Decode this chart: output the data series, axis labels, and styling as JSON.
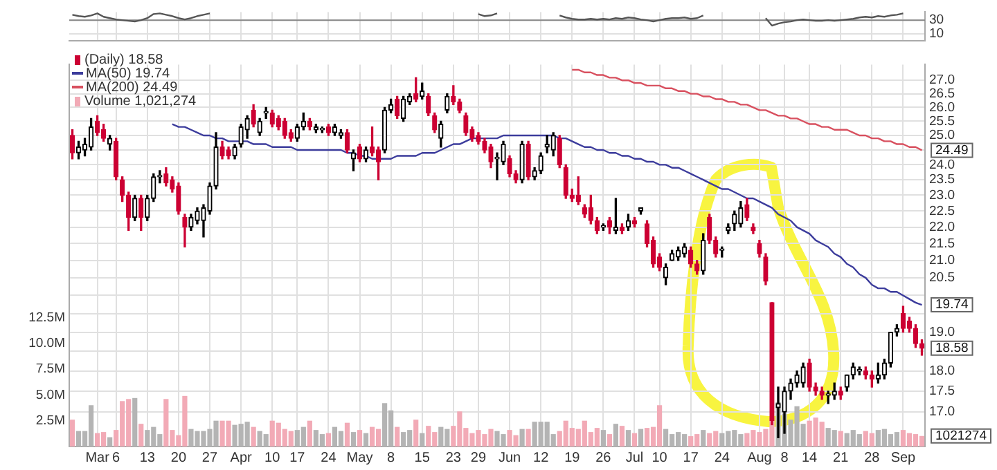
{
  "chart_data": [
    {
      "type": "line",
      "categories": [
        null,
        null,
        null,
        null,
        null,
        null,
        null,
        null,
        null,
        null,
        null,
        null,
        null,
        null,
        null,
        null,
        null,
        null,
        null,
        null,
        null,
        null,
        null,
        null,
        null,
        null,
        null,
        null,
        null,
        null,
        null,
        null,
        null,
        null,
        null,
        null,
        null,
        null,
        null,
        null,
        null,
        null,
        null,
        null,
        null,
        null,
        null,
        null,
        null,
        null,
        null,
        null,
        null,
        null,
        null,
        null,
        null,
        null,
        null,
        null,
        null,
        null,
        null,
        null,
        null,
        null,
        null,
        null,
        null,
        null,
        null,
        null,
        null,
        null,
        null,
        null,
        null,
        null,
        null,
        null,
        null,
        null,
        null,
        null,
        null,
        null,
        null,
        null,
        null,
        null,
        null,
        null,
        null,
        null,
        null,
        null,
        null,
        null,
        null,
        null,
        null,
        null,
        null,
        null,
        null,
        null,
        null,
        null,
        null,
        null,
        null,
        null,
        null,
        null,
        null,
        null,
        null,
        null,
        null,
        null,
        null,
        null,
        null,
        null,
        null,
        null,
        null,
        null,
        null,
        null,
        null,
        null,
        null,
        null,
        null,
        null,
        null
      ],
      "series": [
        {
          "color": "#555555",
          "values": [
            38,
            36,
            35,
            37,
            40,
            35,
            33,
            31,
            30,
            29,
            28,
            30,
            33,
            39,
            40,
            38,
            36,
            33,
            31,
            33,
            36,
            38,
            40,
            null,
            null,
            null,
            null,
            null,
            null,
            null,
            null,
            null,
            null,
            null,
            null,
            null,
            null,
            null,
            null,
            null,
            null,
            null,
            null,
            null,
            null,
            null,
            null,
            null,
            null,
            null,
            null,
            null,
            null,
            null,
            null,
            null,
            null,
            null,
            null,
            null,
            null,
            null,
            null,
            null,
            null,
            39,
            36,
            37,
            40,
            null,
            null,
            null,
            null,
            null,
            null,
            null,
            null,
            null,
            37,
            34,
            32,
            31,
            31,
            32,
            31,
            32,
            31,
            33,
            32,
            34,
            33,
            31,
            30,
            28,
            30,
            32,
            33,
            33,
            34,
            32,
            33,
            37,
            null,
            null,
            null,
            null,
            null,
            null,
            null,
            null,
            null,
            33,
            22,
            25,
            27,
            28,
            30,
            31,
            30,
            29,
            29,
            30,
            29,
            30,
            31,
            32,
            34,
            35,
            34,
            36,
            35,
            37,
            38,
            40,
            null,
            null,
            null
          ]
        }
      ],
      "ylim": [
        0,
        42
      ],
      "yticks": [
        10,
        30
      ],
      "grid": true,
      "marker": "none",
      "tick_labels": "y",
      "ref_lines": [
        {
          "axis": "y",
          "value": 30,
          "color": "#888888"
        }
      ]
    },
    {
      "type": "candlestick",
      "categories": [
        null,
        null,
        null,
        null,
        "Mar",
        null,
        null,
        "6",
        null,
        null,
        null,
        null,
        "13",
        null,
        null,
        null,
        null,
        "20",
        null,
        null,
        null,
        null,
        "27",
        null,
        null,
        null,
        null,
        "Apr",
        null,
        null,
        null,
        null,
        "10",
        null,
        null,
        null,
        "17",
        null,
        null,
        null,
        null,
        "24",
        null,
        null,
        null,
        null,
        "May",
        null,
        null,
        null,
        null,
        "8",
        null,
        null,
        null,
        null,
        "15",
        null,
        null,
        null,
        null,
        "23",
        null,
        null,
        null,
        "29",
        null,
        null,
        null,
        null,
        "Jun",
        null,
        null,
        null,
        null,
        "12",
        null,
        null,
        null,
        null,
        "19",
        null,
        null,
        null,
        null,
        "26",
        null,
        null,
        null,
        null,
        "Jul",
        null,
        null,
        null,
        "10",
        null,
        null,
        null,
        null,
        "17",
        null,
        null,
        null,
        null,
        "24",
        null,
        null,
        null,
        null,
        null,
        "Aug",
        null,
        null,
        null,
        "8",
        null,
        null,
        null,
        "14",
        null,
        null,
        null,
        null,
        "21",
        null,
        null,
        null,
        null,
        "28",
        null,
        null,
        null,
        null,
        "Sep",
        null,
        null,
        null
      ],
      "series": [
        {
          "name": "(Daily) 18.58",
          "ohlc": [
            [
              25.0,
              25.2,
              24.2,
              24.4
            ],
            [
              24.4,
              24.8,
              24.2,
              24.6
            ],
            [
              24.5,
              24.9,
              24.3,
              24.7
            ],
            [
              24.6,
              25.6,
              24.5,
              25.3
            ],
            [
              25.5,
              25.7,
              25.0,
              25.1
            ],
            [
              25.2,
              25.4,
              24.8,
              24.9
            ],
            [
              24.7,
              25.0,
              24.5,
              24.9
            ],
            [
              24.8,
              24.9,
              23.5,
              23.6
            ],
            [
              23.5,
              23.6,
              22.8,
              23.0
            ],
            [
              23.0,
              23.1,
              21.9,
              22.3
            ],
            [
              22.3,
              23.0,
              22.2,
              22.9
            ],
            [
              22.9,
              23.0,
              21.9,
              22.3
            ],
            [
              22.3,
              23.0,
              22.2,
              22.9
            ],
            [
              22.9,
              23.7,
              22.8,
              23.6
            ],
            [
              23.6,
              23.8,
              23.4,
              23.6
            ],
            [
              23.7,
              23.9,
              23.3,
              23.4
            ],
            [
              23.5,
              23.6,
              23.1,
              23.2
            ],
            [
              23.3,
              23.4,
              22.4,
              22.5
            ],
            [
              22.3,
              22.4,
              21.4,
              22.0
            ],
            [
              22.0,
              22.4,
              21.9,
              22.3
            ],
            [
              22.2,
              22.6,
              22.1,
              22.5
            ],
            [
              22.2,
              22.7,
              21.7,
              22.6
            ],
            [
              22.5,
              23.4,
              22.4,
              23.3
            ],
            [
              23.3,
              25.1,
              23.2,
              24.6
            ],
            [
              24.6,
              24.8,
              24.2,
              24.3
            ],
            [
              24.5,
              24.6,
              24.2,
              24.3
            ],
            [
              24.3,
              24.7,
              24.2,
              24.6
            ],
            [
              24.7,
              25.4,
              24.6,
              25.3
            ],
            [
              25.2,
              25.7,
              24.9,
              25.6
            ],
            [
              25.9,
              26.1,
              25.3,
              25.4
            ],
            [
              25.1,
              25.6,
              25.0,
              25.5
            ],
            [
              25.8,
              26.0,
              25.6,
              25.8
            ],
            [
              25.8,
              25.9,
              25.3,
              25.4
            ],
            [
              25.6,
              25.7,
              25.2,
              25.3
            ],
            [
              25.5,
              25.6,
              24.9,
              25.0
            ],
            [
              25.1,
              25.2,
              24.8,
              24.9
            ],
            [
              24.9,
              25.4,
              24.8,
              25.3
            ],
            [
              25.3,
              25.8,
              25.2,
              25.5
            ],
            [
              25.5,
              25.6,
              25.2,
              25.3
            ],
            [
              25.2,
              25.4,
              25.1,
              25.3
            ],
            [
              25.2,
              25.3,
              25.1,
              25.2
            ],
            [
              25.3,
              25.4,
              25.0,
              25.1
            ],
            [
              25.1,
              25.4,
              25.0,
              25.3
            ],
            [
              25.0,
              25.2,
              24.9,
              25.1
            ],
            [
              25.1,
              25.2,
              24.4,
              24.5
            ],
            [
              24.2,
              24.5,
              23.8,
              24.4
            ],
            [
              24.6,
              24.7,
              24.1,
              24.2
            ],
            [
              24.2,
              24.6,
              24.1,
              24.5
            ],
            [
              24.6,
              25.3,
              24.3,
              24.4
            ],
            [
              24.5,
              24.6,
              23.5,
              24.1
            ],
            [
              24.5,
              26.0,
              24.4,
              25.9
            ],
            [
              25.9,
              26.3,
              25.8,
              26.1
            ],
            [
              26.3,
              26.4,
              25.6,
              25.7
            ],
            [
              25.6,
              26.4,
              25.5,
              26.3
            ],
            [
              26.2,
              26.5,
              26.1,
              26.4
            ],
            [
              26.5,
              27.1,
              26.2,
              26.3
            ],
            [
              26.4,
              26.9,
              26.3,
              26.6
            ],
            [
              26.4,
              26.5,
              25.7,
              25.8
            ],
            [
              25.7,
              25.8,
              25.1,
              25.2
            ],
            [
              24.9,
              25.5,
              24.6,
              25.4
            ],
            [
              25.9,
              26.5,
              25.8,
              26.4
            ],
            [
              26.4,
              26.8,
              26.1,
              26.2
            ],
            [
              26.2,
              26.3,
              25.8,
              25.9
            ],
            [
              25.7,
              25.8,
              25.0,
              25.1
            ],
            [
              25.2,
              25.3,
              24.8,
              24.9
            ],
            [
              25.0,
              25.1,
              24.7,
              24.8
            ],
            [
              24.8,
              24.9,
              24.4,
              24.5
            ],
            [
              24.6,
              24.7,
              23.9,
              24.1
            ],
            [
              24.2,
              24.4,
              23.5,
              24.2
            ],
            [
              24.1,
              24.8,
              24.0,
              24.7
            ],
            [
              24.2,
              24.3,
              23.6,
              23.7
            ],
            [
              23.7,
              23.8,
              23.4,
              23.5
            ],
            [
              23.5,
              24.8,
              23.4,
              24.7
            ],
            [
              24.7,
              24.8,
              23.5,
              23.6
            ],
            [
              23.6,
              23.9,
              23.5,
              23.8
            ],
            [
              23.8,
              24.4,
              23.7,
              24.3
            ],
            [
              24.6,
              25.0,
              24.4,
              24.7
            ],
            [
              24.5,
              25.1,
              24.3,
              25.0
            ],
            [
              24.9,
              25.0,
              23.9,
              24.0
            ],
            [
              23.9,
              24.0,
              22.9,
              23.0
            ],
            [
              23.0,
              23.2,
              22.8,
              22.9
            ],
            [
              23.0,
              23.6,
              22.7,
              22.8
            ],
            [
              22.6,
              22.7,
              22.3,
              22.4
            ],
            [
              22.6,
              23.0,
              22.1,
              22.2
            ],
            [
              22.2,
              22.3,
              21.8,
              21.9
            ],
            [
              22.0,
              22.1,
              21.9,
              22.0
            ],
            [
              22.2,
              22.3,
              21.8,
              22.0
            ],
            [
              21.9,
              22.9,
              21.8,
              22.0
            ],
            [
              22.0,
              22.1,
              21.8,
              21.9
            ],
            [
              22.0,
              22.4,
              21.9,
              22.2
            ],
            [
              22.2,
              22.3,
              22.0,
              22.1
            ],
            [
              22.5,
              22.6,
              22.4,
              22.6
            ],
            [
              22.1,
              22.2,
              21.4,
              21.5
            ],
            [
              21.6,
              21.7,
              20.8,
              20.9
            ],
            [
              21.1,
              21.2,
              20.7,
              20.8
            ],
            [
              20.5,
              20.9,
              20.3,
              20.8
            ],
            [
              21.0,
              21.3,
              21.0,
              21.2
            ],
            [
              21.1,
              21.4,
              21.0,
              21.3
            ],
            [
              21.2,
              21.5,
              21.1,
              21.4
            ],
            [
              21.3,
              21.4,
              20.8,
              20.9
            ],
            [
              20.9,
              21.0,
              20.6,
              20.7
            ],
            [
              20.7,
              21.8,
              20.6,
              21.6
            ],
            [
              22.3,
              22.4,
              21.5,
              21.6
            ],
            [
              21.6,
              21.7,
              21.1,
              21.2
            ],
            [
              21.3,
              21.4,
              21.1,
              21.3
            ],
            [
              21.9,
              22.1,
              21.8,
              22.0
            ],
            [
              22.1,
              22.5,
              21.9,
              22.4
            ],
            [
              22.1,
              22.8,
              22.0,
              22.6
            ],
            [
              22.7,
              22.9,
              22.2,
              22.3
            ],
            [
              22.0,
              22.1,
              21.8,
              21.9
            ],
            [
              21.5,
              21.6,
              21.1,
              21.2
            ],
            [
              21.1,
              21.2,
              20.3,
              20.4
            ],
            [
              19.8,
              19.8,
              16.7,
              16.8
            ],
            [
              17.1,
              17.6,
              16.4,
              17.2
            ],
            [
              17.0,
              17.6,
              16.5,
              17.5
            ],
            [
              17.5,
              17.8,
              17.3,
              17.7
            ],
            [
              17.7,
              18.0,
              17.6,
              17.9
            ],
            [
              17.7,
              18.2,
              17.6,
              18.1
            ],
            [
              18.2,
              18.3,
              17.5,
              17.6
            ],
            [
              17.6,
              17.7,
              17.4,
              17.5
            ],
            [
              17.5,
              17.6,
              17.3,
              17.4
            ],
            [
              17.4,
              17.5,
              17.2,
              17.4
            ],
            [
              17.4,
              17.7,
              17.3,
              17.5
            ],
            [
              17.5,
              17.6,
              17.3,
              17.4
            ],
            [
              17.6,
              17.9,
              17.5,
              17.9
            ],
            [
              17.9,
              18.2,
              17.8,
              18.1
            ],
            [
              18.0,
              18.1,
              17.9,
              18.0
            ],
            [
              18.0,
              18.1,
              17.8,
              17.9
            ],
            [
              17.9,
              18.0,
              17.6,
              17.8
            ],
            [
              17.8,
              18.2,
              17.7,
              17.9
            ],
            [
              17.9,
              18.3,
              17.8,
              18.2
            ],
            [
              18.2,
              19.0,
              18.1,
              19.0
            ],
            [
              19.0,
              19.2,
              18.9,
              19.1
            ],
            [
              19.5,
              19.7,
              19.0,
              19.1
            ],
            [
              19.3,
              19.4,
              19.0,
              19.1
            ],
            [
              19.1,
              19.2,
              18.6,
              18.7
            ],
            [
              18.7,
              18.8,
              18.4,
              18.58
            ]
          ],
          "colors": [
            "#cc0033",
            "#000000",
            "#000000",
            "#000000",
            "#cc0033",
            "#cc0033",
            "#000000",
            "#cc0033",
            "#cc0033",
            "#cc0033",
            "#000000",
            "#cc0033",
            "#000000",
            "#000000",
            "#000000",
            "#cc0033",
            "#cc0033",
            "#cc0033",
            "#cc0033",
            "#000000",
            "#000000",
            "#000000",
            "#000000",
            "#000000",
            "#cc0033",
            "#cc0033",
            "#000000",
            "#000000",
            "#000000",
            "#cc0033",
            "#000000",
            "#000000",
            "#cc0033",
            "#cc0033",
            "#cc0033",
            "#cc0033",
            "#000000",
            "#000000",
            "#cc0033",
            "#000000",
            "#000000",
            "#cc0033",
            "#000000",
            "#000000",
            "#cc0033",
            "#000000",
            "#cc0033",
            "#000000",
            "#cc0033",
            "#cc0033",
            "#000000",
            "#000000",
            "#cc0033",
            "#000000",
            "#000000",
            "#cc0033",
            "#000000",
            "#cc0033",
            "#cc0033",
            "#000000",
            "#000000",
            "#cc0033",
            "#cc0033",
            "#cc0033",
            "#cc0033",
            "#cc0033",
            "#cc0033",
            "#cc0033",
            "#000000",
            "#000000",
            "#cc0033",
            "#cc0033",
            "#000000",
            "#cc0033",
            "#000000",
            "#000000",
            "#000000",
            "#000000",
            "#cc0033",
            "#cc0033",
            "#cc0033",
            "#cc0033",
            "#cc0033",
            "#cc0033",
            "#cc0033",
            "#000000",
            "#cc0033",
            "#000000",
            "#cc0033",
            "#000000",
            "#cc0033",
            "#000000",
            "#cc0033",
            "#cc0033",
            "#cc0033",
            "#000000",
            "#000000",
            "#000000",
            "#000000",
            "#cc0033",
            "#cc0033",
            "#000000",
            "#cc0033",
            "#cc0033",
            "#000000",
            "#000000",
            "#000000",
            "#000000",
            "#cc0033",
            "#cc0033",
            "#cc0033",
            "#cc0033",
            "#cc0033",
            "#000000",
            "#000000",
            "#000000",
            "#000000",
            "#000000",
            "#cc0033",
            "#cc0033",
            "#cc0033",
            "#000000",
            "#000000",
            "#cc0033",
            "#000000",
            "#000000",
            "#000000",
            "#cc0033",
            "#cc0033",
            "#000000",
            "#000000",
            "#000000",
            "#000000",
            "#cc0033",
            "#cc0033",
            "#cc0033",
            "#cc0033"
          ]
        },
        {
          "type": "line",
          "name": "MA(50) 19.74",
          "color": "#3c3c9c",
          "values": [
            null,
            null,
            null,
            null,
            null,
            null,
            null,
            null,
            null,
            null,
            null,
            null,
            null,
            null,
            null,
            null,
            25.4,
            25.3,
            25.3,
            25.2,
            25.1,
            25.0,
            25.0,
            24.9,
            24.9,
            24.8,
            24.8,
            24.8,
            24.8,
            24.7,
            24.7,
            24.7,
            24.6,
            24.6,
            24.6,
            24.6,
            24.5,
            24.5,
            24.5,
            24.5,
            24.5,
            24.5,
            24.5,
            24.5,
            24.4,
            24.4,
            24.3,
            24.3,
            24.2,
            24.2,
            24.2,
            24.2,
            24.3,
            24.3,
            24.3,
            24.3,
            24.4,
            24.4,
            24.4,
            24.5,
            24.6,
            24.7,
            24.7,
            24.8,
            24.9,
            24.9,
            24.9,
            24.9,
            24.9,
            25.0,
            25.0,
            25.0,
            25.0,
            25.0,
            25.0,
            25.0,
            25.0,
            25.0,
            24.9,
            24.9,
            24.8,
            24.7,
            24.6,
            24.6,
            24.5,
            24.5,
            24.4,
            24.4,
            24.3,
            24.3,
            24.2,
            24.2,
            24.1,
            24.1,
            24.0,
            24.0,
            23.9,
            23.9,
            23.8,
            23.7,
            23.6,
            23.5,
            23.4,
            23.3,
            23.2,
            23.2,
            23.1,
            23.0,
            22.9,
            22.9,
            22.8,
            22.7,
            22.6,
            22.4,
            22.3,
            22.2,
            22.0,
            21.9,
            21.8,
            21.6,
            21.5,
            21.4,
            21.2,
            21.1,
            20.9,
            20.8,
            20.6,
            20.5,
            20.3,
            20.2,
            20.2,
            20.1,
            20.1,
            20.0,
            19.9,
            19.8,
            19.74
          ]
        },
        {
          "type": "line",
          "name": "MA(200) 24.49",
          "color": "#d8505f",
          "values": [
            null,
            null,
            null,
            null,
            null,
            null,
            null,
            null,
            null,
            null,
            null,
            null,
            null,
            null,
            null,
            null,
            null,
            null,
            null,
            null,
            null,
            null,
            null,
            null,
            null,
            null,
            null,
            null,
            null,
            null,
            null,
            null,
            null,
            null,
            null,
            null,
            null,
            null,
            null,
            null,
            null,
            null,
            null,
            null,
            null,
            null,
            null,
            null,
            null,
            null,
            null,
            null,
            null,
            null,
            null,
            null,
            null,
            null,
            null,
            null,
            null,
            null,
            null,
            null,
            null,
            null,
            null,
            null,
            null,
            null,
            null,
            null,
            null,
            null,
            null,
            null,
            null,
            null,
            null,
            null,
            27.4,
            27.4,
            27.3,
            27.3,
            27.2,
            27.2,
            27.1,
            27.1,
            27.0,
            27.0,
            26.9,
            26.9,
            26.8,
            26.8,
            26.8,
            26.7,
            26.7,
            26.6,
            26.6,
            26.5,
            26.5,
            26.4,
            26.4,
            26.3,
            26.3,
            26.2,
            26.2,
            26.1,
            26.1,
            26.0,
            25.9,
            25.9,
            25.8,
            25.7,
            25.7,
            25.6,
            25.6,
            25.5,
            25.4,
            25.4,
            25.3,
            25.3,
            25.2,
            25.2,
            25.2,
            25.1,
            25.0,
            25.0,
            24.9,
            24.9,
            24.8,
            24.8,
            24.7,
            24.7,
            24.6,
            24.6,
            24.49
          ]
        },
        {
          "type": "bar",
          "name": "Volume 1,021,274",
          "axis": "y2",
          "values": [
            2.6,
            1.5,
            1.5,
            4.0,
            1.3,
            1.4,
            0.9,
            1.6,
            4.4,
            4.6,
            4.7,
            2.2,
            1.6,
            1.9,
            1.2,
            4.6,
            1.6,
            1.1,
            4.9,
            1.7,
            1.5,
            1.5,
            1.7,
            2.5,
            2.5,
            2.5,
            2.1,
            2.2,
            2.4,
            1.9,
            1.5,
            1.2,
            2.5,
            2.3,
            1.7,
            1.5,
            1.6,
            1.9,
            2.5,
            1.6,
            1.2,
            1.3,
            1.9,
            1.5,
            2.3,
            1.4,
            1.6,
            1.3,
            1.9,
            1.7,
            4.2,
            3.5,
            1.9,
            1.4,
            1.6,
            2.6,
            1.3,
            2.0,
            1.4,
            1.9,
            1.7,
            2.0,
            3.4,
            1.8,
            1.3,
            1.6,
            1.2,
            1.7,
            1.5,
            1.2,
            1.6,
            1.1,
            1.7,
            1.7,
            2.4,
            2.4,
            2.4,
            1.2,
            1.5,
            2.5,
            1.8,
            1.7,
            2.5,
            1.4,
            1.8,
            1.6,
            1.2,
            2.2,
            2.0,
            1.6,
            1.3,
            1.7,
            1.8,
            1.9,
            4.0,
            1.7,
            1.2,
            1.4,
            1.2,
            1.0,
            1.2,
            1.6,
            1.3,
            1.5,
            1.3,
            1.5,
            1.6,
            1.2,
            1.3,
            1.6,
            1.4,
            1.7,
            2.8,
            4.3,
            3.2,
            2.6,
            3.9,
            2.2,
            2.5,
            2.8,
            2.4,
            1.8,
            1.6,
            1.5,
            1.3,
            1.6,
            1.2,
            1.5,
            1.3,
            1.6,
            1.7,
            1.2,
            1.4,
            1.6,
            1.3,
            1.2,
            1.021274
          ],
          "colors": [
            "#f2aab6",
            "#b4b4b4",
            "#b4b4b4",
            "#b4b4b4",
            "#f2aab6",
            "#f2aab6",
            "#b4b4b4",
            "#f2aab6",
            "#f2aab6",
            "#f2aab6",
            "#b4b4b4",
            "#f2aab6",
            "#b4b4b4",
            "#b4b4b4",
            "#b4b4b4",
            "#f2aab6",
            "#f2aab6",
            "#f2aab6",
            "#f2aab6",
            "#b4b4b4",
            "#b4b4b4",
            "#b4b4b4",
            "#b4b4b4",
            "#b4b4b4",
            "#f2aab6",
            "#f2aab6",
            "#b4b4b4",
            "#b4b4b4",
            "#b4b4b4",
            "#f2aab6",
            "#b4b4b4",
            "#b4b4b4",
            "#f2aab6",
            "#f2aab6",
            "#f2aab6",
            "#f2aab6",
            "#b4b4b4",
            "#b4b4b4",
            "#f2aab6",
            "#b4b4b4",
            "#b4b4b4",
            "#f2aab6",
            "#b4b4b4",
            "#b4b4b4",
            "#f2aab6",
            "#b4b4b4",
            "#f2aab6",
            "#b4b4b4",
            "#f2aab6",
            "#f2aab6",
            "#b4b4b4",
            "#b4b4b4",
            "#f2aab6",
            "#b4b4b4",
            "#b4b4b4",
            "#f2aab6",
            "#b4b4b4",
            "#f2aab6",
            "#f2aab6",
            "#b4b4b4",
            "#b4b4b4",
            "#f2aab6",
            "#f2aab6",
            "#f2aab6",
            "#f2aab6",
            "#f2aab6",
            "#f2aab6",
            "#f2aab6",
            "#b4b4b4",
            "#b4b4b4",
            "#f2aab6",
            "#f2aab6",
            "#b4b4b4",
            "#f2aab6",
            "#b4b4b4",
            "#b4b4b4",
            "#b4b4b4",
            "#b4b4b4",
            "#f2aab6",
            "#f2aab6",
            "#f2aab6",
            "#f2aab6",
            "#f2aab6",
            "#f2aab6",
            "#f2aab6",
            "#b4b4b4",
            "#f2aab6",
            "#b4b4b4",
            "#f2aab6",
            "#b4b4b4",
            "#f2aab6",
            "#b4b4b4",
            "#f2aab6",
            "#f2aab6",
            "#f2aab6",
            "#b4b4b4",
            "#b4b4b4",
            "#b4b4b4",
            "#b4b4b4",
            "#f2aab6",
            "#f2aab6",
            "#b4b4b4",
            "#f2aab6",
            "#f2aab6",
            "#b4b4b4",
            "#b4b4b4",
            "#b4b4b4",
            "#b4b4b4",
            "#f2aab6",
            "#f2aab6",
            "#f2aab6",
            "#f2aab6",
            "#f2aab6",
            "#b4b4b4",
            "#b4b4b4",
            "#b4b4b4",
            "#b4b4b4",
            "#b4b4b4",
            "#f2aab6",
            "#f2aab6",
            "#f2aab6",
            "#b4b4b4",
            "#b4b4b4",
            "#f2aab6",
            "#b4b4b4",
            "#b4b4b4",
            "#b4b4b4",
            "#f2aab6",
            "#f2aab6",
            "#b4b4b4",
            "#b4b4b4",
            "#b4b4b4",
            "#b4b4b4",
            "#f2aab6",
            "#f2aab6",
            "#f2aab6",
            "#f2aab6"
          ]
        }
      ],
      "ylim": [
        16.2,
        27.6
      ],
      "log": "y",
      "yticks": [
        {
          "value": 17,
          "label": "17.0"
        },
        17.5,
        {
          "value": 18,
          "label": "18.0"
        },
        {
          "value": 18.5,
          "label": null
        },
        {
          "value": 19,
          "label": "19.0"
        },
        {
          "value": 19.5,
          "label": null
        },
        {
          "value": 20,
          "label": null
        },
        20.5,
        {
          "value": 21,
          "label": "21.0"
        },
        21.5,
        {
          "value": 22,
          "label": "22.0"
        },
        22.5,
        {
          "value": 23,
          "label": "23.0"
        },
        23.5,
        {
          "value": 24,
          "label": "24.0"
        },
        {
          "value": 24.5,
          "label": null
        },
        {
          "value": 25,
          "label": "25.0"
        },
        25.5,
        {
          "value": 26,
          "label": "26.0"
        },
        26.5,
        {
          "value": 27,
          "label": "27.0"
        }
      ],
      "y2lim": [
        0,
        37
      ],
      "y2ticks": [
        {
          "value": 2.5,
          "label": "2.5M"
        },
        {
          "value": 5,
          "label": "5.0M"
        },
        {
          "value": 7.5,
          "label": "7.5M"
        },
        {
          "value": 10,
          "label": "10.0M"
        },
        {
          "value": 12.5,
          "label": "12.5M"
        }
      ],
      "grid": true,
      "legend": "top left",
      "marker": "none",
      "annotations": [
        "18.58",
        "19.74",
        "24.49",
        "1021274"
      ]
    }
  ]
}
